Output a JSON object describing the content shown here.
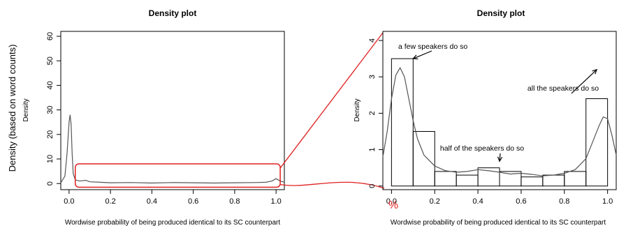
{
  "outer_ylabel": "Density (based on word counts)",
  "mark_symbol": "%",
  "colors": {
    "highlight": "#e02020",
    "curve": "#555555",
    "bar": "#000000"
  },
  "chart_data": [
    {
      "type": "line",
      "title": "Density plot",
      "xlabel": "Wordwise probability of being produced identical to its SC counterpart",
      "ylabel": "Density",
      "xlim": [
        -0.04,
        1.04
      ],
      "ylim": [
        -2.5,
        62
      ],
      "xticks": [
        0.0,
        0.2,
        0.4,
        0.6,
        0.8,
        1.0
      ],
      "xtick_labels": [
        "0.0",
        "0.2",
        "0.4",
        "0.6",
        "0.8",
        "1.0"
      ],
      "yticks": [
        0,
        10,
        20,
        30,
        40,
        50,
        60
      ],
      "ytick_labels": [
        "0",
        "10",
        "20",
        "30",
        "40",
        "50",
        "60"
      ],
      "series": [
        {
          "x": [
            -0.04,
            -0.02,
            -0.01,
            0.0,
            0.005,
            0.01,
            0.015,
            0.02,
            0.03,
            0.05,
            0.08,
            0.1,
            0.15,
            0.2,
            0.3,
            0.4,
            0.5,
            0.6,
            0.7,
            0.8,
            0.9,
            0.95,
            0.98,
            1.0,
            1.02,
            1.04
          ],
          "y": [
            0.3,
            3,
            12,
            25,
            28,
            24,
            12,
            4,
            1.5,
            1.0,
            1.3,
            0.7,
            0.5,
            0.3,
            0.4,
            0.2,
            0.4,
            0.3,
            0.2,
            0.3,
            0.4,
            0.5,
            1.0,
            2.0,
            1.0,
            0.5
          ]
        }
      ],
      "highlight_box": {
        "x": [
          0.03,
          1.02
        ],
        "y": [
          -1.5,
          8
        ]
      }
    },
    {
      "type": "bar",
      "title": "Density plot",
      "xlabel": "Wordwise probability of being produced identical to its SC counterpart",
      "ylabel": "Density",
      "xlim": [
        -0.04,
        1.04
      ],
      "ylim": [
        -0.1,
        4.25
      ],
      "xticks": [
        0.0,
        0.2,
        0.4,
        0.6,
        0.8,
        1.0
      ],
      "xtick_labels": [
        "0.0",
        "0.2",
        "0.4",
        "0.6",
        "0.8",
        "1.0"
      ],
      "yticks": [
        0,
        1,
        2,
        3,
        4
      ],
      "ytick_labels": [
        "0",
        "1",
        "2",
        "3",
        "4"
      ],
      "bin_edges": [
        0.0,
        0.1,
        0.2,
        0.3,
        0.4,
        0.5,
        0.6,
        0.7,
        0.8,
        0.9,
        1.0
      ],
      "values": [
        3.5,
        1.5,
        0.4,
        0.3,
        0.5,
        0.4,
        0.25,
        0.3,
        0.4,
        2.4
      ],
      "curve": {
        "x": [
          -0.04,
          -0.02,
          0.0,
          0.02,
          0.04,
          0.06,
          0.08,
          0.1,
          0.12,
          0.15,
          0.2,
          0.25,
          0.3,
          0.35,
          0.4,
          0.45,
          0.5,
          0.55,
          0.6,
          0.65,
          0.7,
          0.75,
          0.8,
          0.85,
          0.9,
          0.93,
          0.96,
          0.98,
          1.0,
          1.02,
          1.04
        ],
        "y": [
          0.8,
          1.5,
          2.4,
          3.05,
          3.25,
          3.0,
          2.4,
          1.8,
          1.3,
          0.85,
          0.55,
          0.42,
          0.38,
          0.4,
          0.45,
          0.42,
          0.38,
          0.33,
          0.35,
          0.32,
          0.28,
          0.3,
          0.35,
          0.45,
          0.75,
          1.2,
          1.65,
          1.9,
          1.85,
          1.4,
          0.85
        ]
      },
      "annotations": [
        {
          "text": "a few speakers do so",
          "x": 0.1,
          "y": 3.5
        },
        {
          "text": "half of the speakers do so",
          "x": 0.5,
          "y": 0.68
        },
        {
          "text": "all the speakers do so",
          "x": 0.95,
          "y": 3.2
        }
      ]
    }
  ]
}
